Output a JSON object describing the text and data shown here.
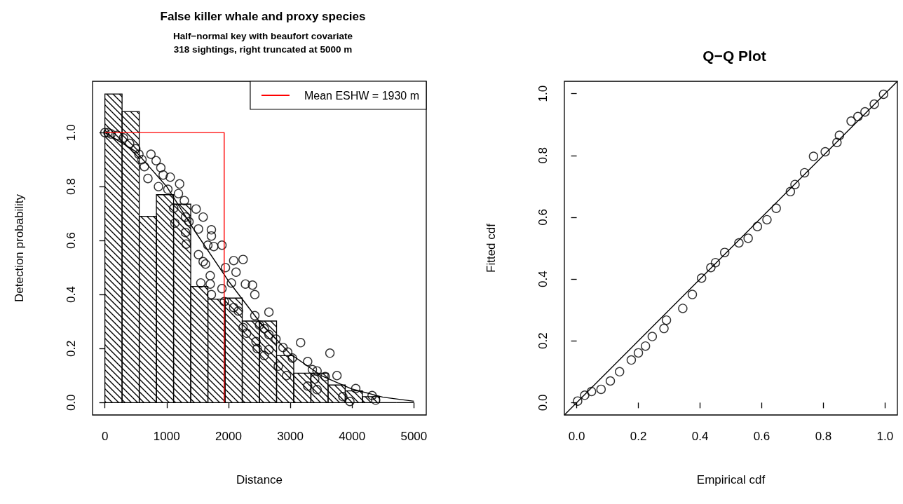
{
  "chart_data": [
    {
      "type": "histogram",
      "title": "False killer whale and proxy species",
      "subtitle": "Half−normal key with beaufort covariate\n318 sightings, right truncated at 5000 m",
      "xlabel": "Distance",
      "ylabel": "Detection probability",
      "xlim": [
        -200,
        5200
      ],
      "xticks": [
        0,
        1000,
        2000,
        3000,
        4000,
        5000
      ],
      "ylim": [
        -0.046,
        1.19
      ],
      "yticks": [
        {
          "value": 0,
          "label": "0.0"
        },
        {
          "value": 0.2,
          "label": "0.2"
        },
        {
          "value": 0.4,
          "label": "0.4"
        },
        {
          "value": 0.6,
          "label": "0.6"
        },
        {
          "value": 0.8,
          "label": "0.8"
        },
        {
          "value": 1,
          "label": "1.0"
        }
      ],
      "grid": false,
      "legend": "top right",
      "series": [
        {
          "color": "#000000",
          "bins": [
            0,
            277.8,
            555.6,
            833.3,
            1111.1,
            1388.9,
            1666.7,
            1944.4,
            2222.2,
            2500,
            2777.8,
            3055.6,
            3333.3,
            3611.1,
            3888.9,
            4166.7,
            4444.4,
            4722.2,
            5000
          ],
          "values": [
            1.143,
            1.078,
            0.69,
            0.77,
            0.735,
            0.43,
            0.383,
            0.387,
            0.302,
            0.302,
            0.174,
            0.109,
            0.109,
            0.065,
            0.043,
            0.022,
            0,
            0
          ]
        },
        {
          "type": "scatter",
          "marker": "circle",
          "color": "#000000",
          "x": [
            0,
            50,
            100,
            200,
            300,
            400,
            500,
            550,
            600,
            639,
            696,
            745,
            829,
            905,
            943,
            1057,
            867,
            1019,
            1209,
            1190,
            1285,
            1114,
            1133,
            1304,
            1361,
            1304,
            1476,
            1590,
            1514,
            1723,
            1723,
            1316,
            1666,
            1761,
            1894,
            1514,
            1590,
            1628,
            1704,
            1951,
            2084,
            2236,
            2122,
            1552,
            1704,
            1894,
            2046,
            2274,
            2388,
            2426,
            1723,
            1932,
            2084,
            2160,
            2426,
            2654,
            2236,
            2293,
            2502,
            2578,
            2654,
            2768,
            2445,
            2464,
            2654,
            2578,
            2882,
            2958,
            3034,
            2806,
            2939,
            3167,
            3281,
            3357,
            3433,
            3641,
            3395,
            3281,
            3433,
            3565,
            3755,
            3850,
            3964,
            4059,
            4324,
            4381
          ],
          "values": [
            1,
            1,
            0.995,
            0.99,
            0.98,
            0.96,
            0.94,
            0.92,
            0.9,
            0.874,
            0.83,
            0.92,
            0.896,
            0.87,
            0.843,
            0.835,
            0.8,
            0.79,
            0.81,
            0.774,
            0.748,
            0.72,
            0.665,
            0.687,
            0.67,
            0.63,
            0.717,
            0.687,
            0.643,
            0.64,
            0.617,
            0.587,
            0.583,
            0.578,
            0.583,
            0.548,
            0.522,
            0.513,
            0.47,
            0.5,
            0.526,
            0.53,
            0.483,
            0.443,
            0.439,
            0.422,
            0.443,
            0.439,
            0.435,
            0.4,
            0.4,
            0.374,
            0.352,
            0.339,
            0.322,
            0.335,
            0.278,
            0.257,
            0.287,
            0.274,
            0.252,
            0.235,
            0.226,
            0.2,
            0.196,
            0.174,
            0.204,
            0.187,
            0.165,
            0.135,
            0.1,
            0.222,
            0.152,
            0.122,
            0.117,
            0.183,
            0.087,
            0.061,
            0.048,
            0.096,
            0.1,
            0.022,
            0.004,
            0.052,
            0.026,
            0.009
          ]
        },
        {
          "type": "line",
          "color": "#000000",
          "x": [
            0,
            500,
            1000,
            1500,
            2000,
            2500,
            3000,
            3500,
            4000,
            4500,
            5000
          ],
          "values": [
            1,
            0.93,
            0.8,
            0.62,
            0.45,
            0.3,
            0.18,
            0.1,
            0.05,
            0.02,
            0.005
          ]
        },
        {
          "type": "line",
          "name": "Mean ESHW = 1930 m",
          "color": "#ff0000",
          "x": [
            0,
            1930,
            1930
          ],
          "values": [
            1,
            1,
            0
          ]
        }
      ]
    },
    {
      "type": "scatter",
      "title": "Q−Q Plot",
      "xlabel": "Empirical cdf",
      "ylabel": "Fitted cdf",
      "xlim": [
        -0.04,
        1.04
      ],
      "xticks": [
        {
          "value": 0,
          "label": "0.0"
        },
        {
          "value": 0.2,
          "label": "0.2"
        },
        {
          "value": 0.4,
          "label": "0.4"
        },
        {
          "value": 0.6,
          "label": "0.6"
        },
        {
          "value": 0.8,
          "label": "0.8"
        },
        {
          "value": 1,
          "label": "1.0"
        }
      ],
      "ylim": [
        -0.04,
        1.04
      ],
      "yticks": [
        {
          "value": 0,
          "label": "0.0"
        },
        {
          "value": 0.2,
          "label": "0.2"
        },
        {
          "value": 0.4,
          "label": "0.4"
        },
        {
          "value": 0.6,
          "label": "0.6"
        },
        {
          "value": 0.8,
          "label": "0.8"
        },
        {
          "value": 1,
          "label": "1.0"
        }
      ],
      "grid": false,
      "series": [
        {
          "type": "line",
          "color": "#000000",
          "x": [
            -0.04,
            1.04
          ],
          "values": [
            -0.04,
            1.04
          ]
        },
        {
          "marker": "circle",
          "color": "#000000",
          "x": [
            0.003,
            0.026,
            0.048,
            0.079,
            0.109,
            0.139,
            0.177,
            0.2,
            0.223,
            0.245,
            0.283,
            0.291,
            0.344,
            0.375,
            0.405,
            0.435,
            0.45,
            0.48,
            0.526,
            0.556,
            0.586,
            0.617,
            0.647,
            0.693,
            0.708,
            0.739,
            0.768,
            0.806,
            0.844,
            0.852,
            0.89,
            0.912,
            0.935,
            0.965,
            0.995
          ],
          "values": [
            0.005,
            0.024,
            0.036,
            0.043,
            0.07,
            0.1,
            0.138,
            0.161,
            0.183,
            0.214,
            0.24,
            0.267,
            0.305,
            0.35,
            0.403,
            0.437,
            0.453,
            0.486,
            0.517,
            0.532,
            0.57,
            0.592,
            0.629,
            0.683,
            0.706,
            0.744,
            0.797,
            0.812,
            0.842,
            0.865,
            0.911,
            0.926,
            0.941,
            0.966,
            0.998
          ]
        }
      ]
    }
  ]
}
